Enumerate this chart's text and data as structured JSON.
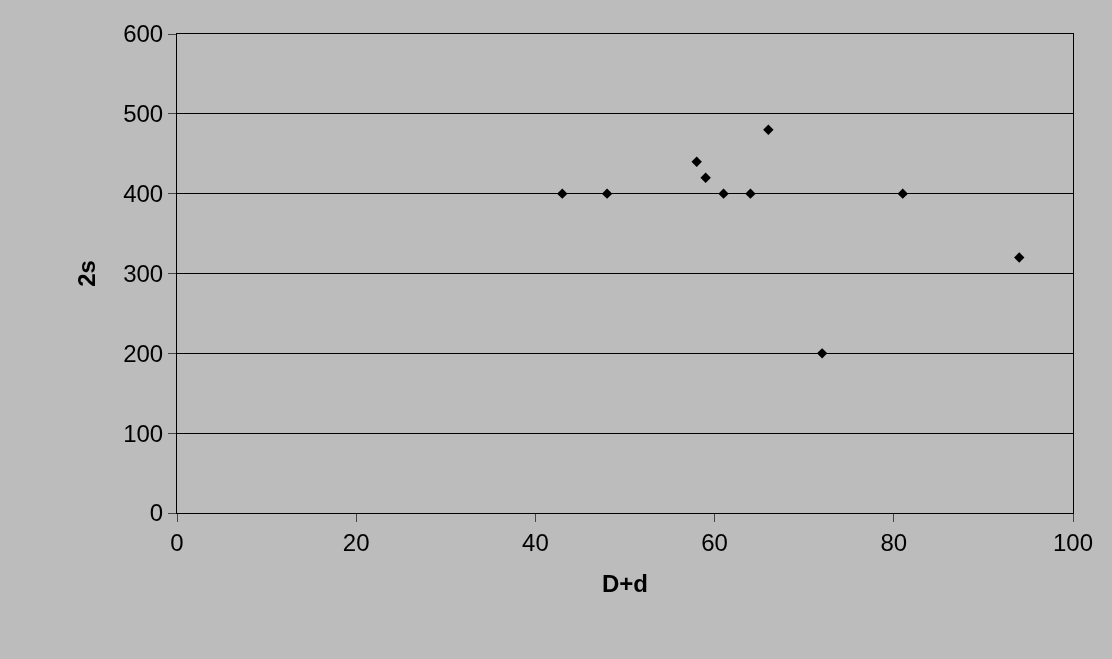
{
  "chart_data": {
    "type": "scatter",
    "xlabel": "D+d",
    "ylabel": "2s",
    "x": [
      43,
      48,
      58,
      59,
      61,
      64,
      66,
      72,
      81,
      94
    ],
    "series": [
      {
        "color": "#000000",
        "values": [
          400,
          400,
          440,
          420,
          400,
          400,
          480,
          200,
          400,
          320
        ]
      }
    ],
    "xlim": [
      0,
      100
    ],
    "xticks": [
      0,
      20,
      40,
      60,
      80,
      100
    ],
    "ylim": [
      0,
      600
    ],
    "yticks": [
      0,
      100,
      200,
      300,
      400,
      500,
      600
    ],
    "grid": "y",
    "marker": "diamond"
  }
}
